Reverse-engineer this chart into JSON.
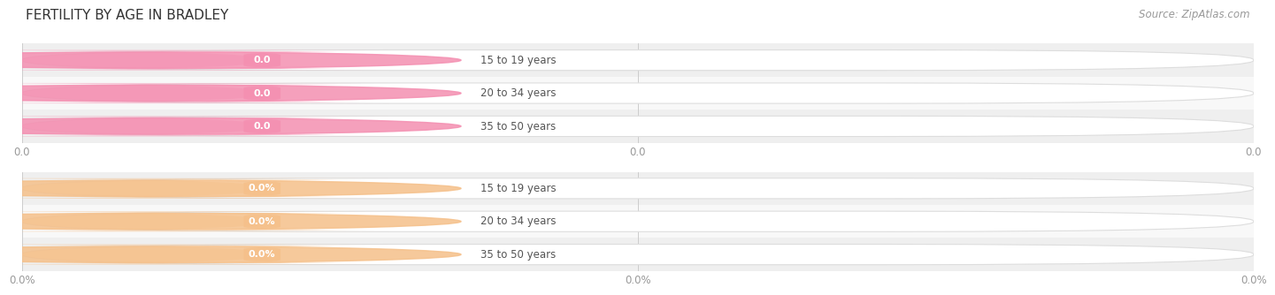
{
  "title": "FERTILITY BY AGE IN BRADLEY",
  "source_text": "Source: ZipAtlas.com",
  "top_group": {
    "labels": [
      "15 to 19 years",
      "20 to 34 years",
      "35 to 50 years"
    ],
    "values": [
      0.0,
      0.0,
      0.0
    ],
    "bar_color": "#f48fb1",
    "value_label_color": "#f48fb1",
    "is_percent": false,
    "xtick_labels": [
      "0.0",
      "0.0",
      "0.0"
    ]
  },
  "bottom_group": {
    "labels": [
      "15 to 19 years",
      "20 to 34 years",
      "35 to 50 years"
    ],
    "values": [
      0.0,
      0.0,
      0.0
    ],
    "bar_color": "#f5c08a",
    "value_label_color": "#f5c08a",
    "is_percent": true,
    "xtick_labels": [
      "0.0%",
      "0.0%",
      "0.0%"
    ]
  },
  "fig_width": 14.06,
  "fig_height": 3.3,
  "bg_color": "#ffffff",
  "row_even_color": "#efefef",
  "row_odd_color": "#f8f8f8",
  "title_fontsize": 11,
  "source_fontsize": 8.5,
  "label_fontsize": 8.5,
  "value_fontsize": 8.0
}
